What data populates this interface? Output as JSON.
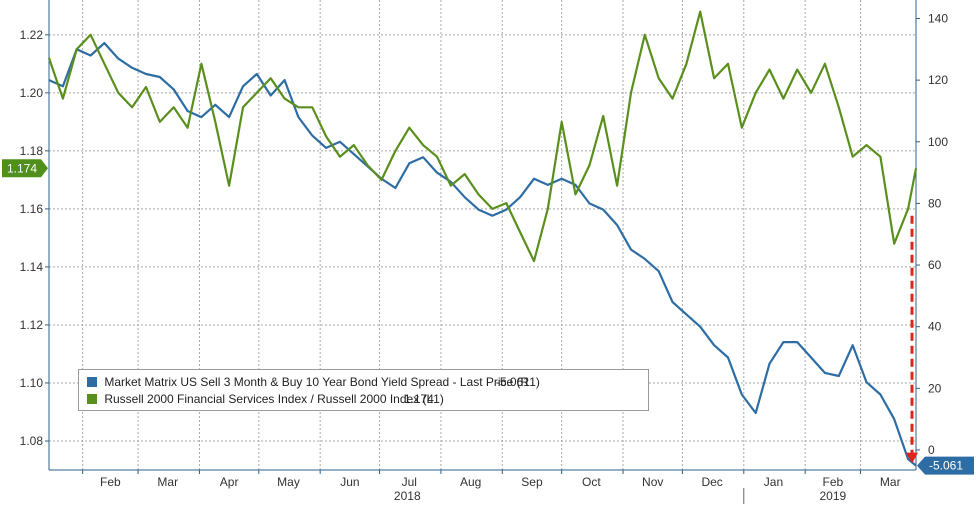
{
  "chart_data": {
    "type": "line",
    "left_axis": {
      "ylim": [
        1.07,
        1.232
      ],
      "ticks": [
        1.08,
        1.1,
        1.12,
        1.14,
        1.16,
        1.18,
        1.2,
        1.22
      ]
    },
    "right_axis": {
      "ylim": [
        -6.5,
        146
      ],
      "ticks": [
        0,
        20,
        40,
        60,
        80,
        100,
        120,
        140
      ]
    },
    "x_months": [
      "Feb",
      "Mar",
      "Apr",
      "May",
      "Jun",
      "Jul",
      "Aug",
      "Sep",
      "Oct",
      "Nov",
      "Dec",
      "Jan",
      "Feb",
      "Mar"
    ],
    "x_years": [
      "2018",
      "2019"
    ],
    "x_range": [
      "2018-01-15",
      "2019-03-29"
    ],
    "grid": true,
    "legend_position": "bottom-left",
    "series": [
      {
        "name": "Market Matrix US Sell 3 Month & Buy 10 Year Bond Yield Spread - Last Price (R1)",
        "last_label": "-5.061",
        "axis": "right",
        "color": "#2e6da4",
        "values": [
          [
            "2018-01-15",
            120
          ],
          [
            "2018-01-22",
            118
          ],
          [
            "2018-01-29",
            130
          ],
          [
            "2018-02-05",
            128
          ],
          [
            "2018-02-12",
            132
          ],
          [
            "2018-02-19",
            127
          ],
          [
            "2018-02-26",
            124
          ],
          [
            "2018-03-05",
            122
          ],
          [
            "2018-03-12",
            121
          ],
          [
            "2018-03-19",
            117
          ],
          [
            "2018-03-26",
            110
          ],
          [
            "2018-04-02",
            108
          ],
          [
            "2018-04-09",
            112
          ],
          [
            "2018-04-16",
            108
          ],
          [
            "2018-04-23",
            118
          ],
          [
            "2018-04-30",
            122
          ],
          [
            "2018-05-07",
            115
          ],
          [
            "2018-05-14",
            120
          ],
          [
            "2018-05-21",
            108
          ],
          [
            "2018-05-28",
            102
          ],
          [
            "2018-06-04",
            98
          ],
          [
            "2018-06-11",
            100
          ],
          [
            "2018-06-18",
            96
          ],
          [
            "2018-06-25",
            92
          ],
          [
            "2018-07-02",
            88
          ],
          [
            "2018-07-09",
            85
          ],
          [
            "2018-07-16",
            93
          ],
          [
            "2018-07-23",
            95
          ],
          [
            "2018-07-30",
            90
          ],
          [
            "2018-08-06",
            87
          ],
          [
            "2018-08-13",
            82
          ],
          [
            "2018-08-20",
            78
          ],
          [
            "2018-08-27",
            76
          ],
          [
            "2018-09-03",
            78
          ],
          [
            "2018-09-10",
            82
          ],
          [
            "2018-09-17",
            88
          ],
          [
            "2018-09-24",
            86
          ],
          [
            "2018-10-01",
            88
          ],
          [
            "2018-10-08",
            86
          ],
          [
            "2018-10-15",
            80
          ],
          [
            "2018-10-22",
            78
          ],
          [
            "2018-10-29",
            73
          ],
          [
            "2018-11-05",
            65
          ],
          [
            "2018-11-12",
            62
          ],
          [
            "2018-11-19",
            58
          ],
          [
            "2018-11-26",
            48
          ],
          [
            "2018-12-03",
            44
          ],
          [
            "2018-12-10",
            40
          ],
          [
            "2018-12-17",
            34
          ],
          [
            "2018-12-24",
            30
          ],
          [
            "2018-12-31",
            18
          ],
          [
            "2019-01-07",
            12
          ],
          [
            "2019-01-14",
            28
          ],
          [
            "2019-01-21",
            35
          ],
          [
            "2019-01-28",
            35
          ],
          [
            "2019-02-04",
            30
          ],
          [
            "2019-02-11",
            25
          ],
          [
            "2019-02-18",
            24
          ],
          [
            "2019-02-25",
            34
          ],
          [
            "2019-03-04",
            22
          ],
          [
            "2019-03-11",
            18
          ],
          [
            "2019-03-18",
            10
          ],
          [
            "2019-03-25",
            -3
          ],
          [
            "2019-03-29",
            -5.061
          ]
        ]
      },
      {
        "name": "Russell 2000 Financial Services Index / Russell 2000 Index (L1)",
        "last_label": "1.174",
        "axis": "left",
        "color": "#5a8f1e",
        "values": [
          [
            "2018-01-15",
            1.212
          ],
          [
            "2018-01-22",
            1.198
          ],
          [
            "2018-01-29",
            1.215
          ],
          [
            "2018-02-05",
            1.22
          ],
          [
            "2018-02-12",
            1.21
          ],
          [
            "2018-02-19",
            1.2
          ],
          [
            "2018-02-26",
            1.195
          ],
          [
            "2018-03-05",
            1.202
          ],
          [
            "2018-03-12",
            1.19
          ],
          [
            "2018-03-19",
            1.195
          ],
          [
            "2018-03-26",
            1.188
          ],
          [
            "2018-04-02",
            1.21
          ],
          [
            "2018-04-09",
            1.19
          ],
          [
            "2018-04-16",
            1.168
          ],
          [
            "2018-04-23",
            1.195
          ],
          [
            "2018-04-30",
            1.2
          ],
          [
            "2018-05-07",
            1.205
          ],
          [
            "2018-05-14",
            1.198
          ],
          [
            "2018-05-21",
            1.195
          ],
          [
            "2018-05-28",
            1.195
          ],
          [
            "2018-06-04",
            1.185
          ],
          [
            "2018-06-11",
            1.178
          ],
          [
            "2018-06-18",
            1.182
          ],
          [
            "2018-06-25",
            1.175
          ],
          [
            "2018-07-02",
            1.17
          ],
          [
            "2018-07-09",
            1.18
          ],
          [
            "2018-07-16",
            1.188
          ],
          [
            "2018-07-23",
            1.182
          ],
          [
            "2018-07-30",
            1.178
          ],
          [
            "2018-08-06",
            1.168
          ],
          [
            "2018-08-13",
            1.172
          ],
          [
            "2018-08-20",
            1.165
          ],
          [
            "2018-08-27",
            1.16
          ],
          [
            "2018-09-03",
            1.162
          ],
          [
            "2018-09-10",
            1.152
          ],
          [
            "2018-09-17",
            1.142
          ],
          [
            "2018-09-24",
            1.16
          ],
          [
            "2018-10-01",
            1.19
          ],
          [
            "2018-10-08",
            1.165
          ],
          [
            "2018-10-15",
            1.175
          ],
          [
            "2018-10-22",
            1.192
          ],
          [
            "2018-10-29",
            1.168
          ],
          [
            "2018-11-05",
            1.2
          ],
          [
            "2018-11-12",
            1.22
          ],
          [
            "2018-11-19",
            1.205
          ],
          [
            "2018-11-26",
            1.198
          ],
          [
            "2018-12-03",
            1.21
          ],
          [
            "2018-12-10",
            1.228
          ],
          [
            "2018-12-17",
            1.205
          ],
          [
            "2018-12-24",
            1.21
          ],
          [
            "2018-12-31",
            1.188
          ],
          [
            "2019-01-07",
            1.2
          ],
          [
            "2019-01-14",
            1.208
          ],
          [
            "2019-01-21",
            1.198
          ],
          [
            "2019-01-28",
            1.208
          ],
          [
            "2019-02-04",
            1.2
          ],
          [
            "2019-02-11",
            1.21
          ],
          [
            "2019-02-18",
            1.195
          ],
          [
            "2019-02-25",
            1.178
          ],
          [
            "2019-03-04",
            1.182
          ],
          [
            "2019-03-11",
            1.178
          ],
          [
            "2019-03-18",
            1.148
          ],
          [
            "2019-03-25",
            1.16
          ],
          [
            "2019-03-29",
            1.174
          ]
        ]
      }
    ]
  },
  "colors": {
    "plot_bg": "#ffffff",
    "grid": "#a8a8a8",
    "axis": "#2e5f86",
    "arrow": "#e0241b",
    "left_label_bg": "#4f8f1a",
    "right_label_bg": "#2e6da4"
  }
}
